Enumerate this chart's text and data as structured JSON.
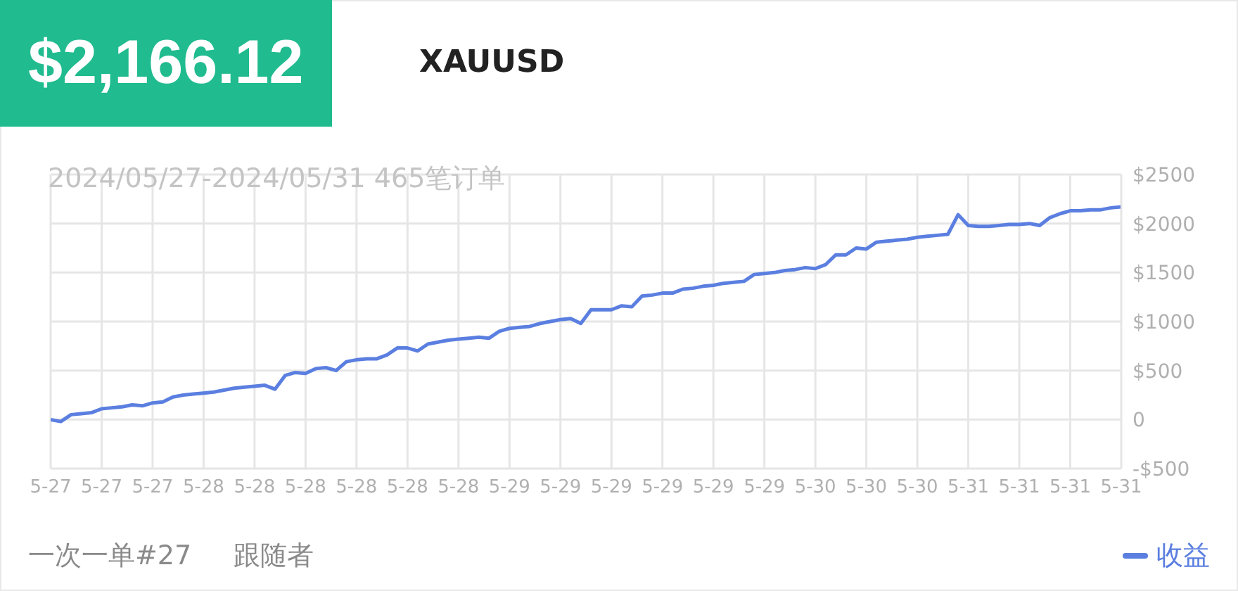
{
  "chart_data": {
    "type": "line",
    "title": "$2,166.12",
    "subtitle": "XAUUSD",
    "annotations": [
      "2024/05/27-2024/05/31 465笔订单",
      "一次一单#27",
      "跟随者"
    ],
    "categories": [
      "5-27",
      null,
      null,
      null,
      null,
      "5-27",
      null,
      null,
      null,
      null,
      "5-27",
      null,
      null,
      null,
      null,
      "5-28",
      null,
      null,
      null,
      null,
      "5-28",
      null,
      null,
      null,
      null,
      "5-28",
      null,
      null,
      null,
      null,
      "5-28",
      null,
      null,
      null,
      null,
      "5-28",
      null,
      null,
      null,
      null,
      "5-28",
      null,
      null,
      null,
      null,
      "5-29",
      null,
      null,
      null,
      null,
      "5-29",
      null,
      null,
      null,
      null,
      "5-29",
      null,
      null,
      null,
      null,
      "5-29",
      null,
      null,
      null,
      null,
      "5-29",
      null,
      null,
      null,
      null,
      "5-29",
      null,
      null,
      null,
      null,
      "5-30",
      null,
      null,
      null,
      null,
      "5-30",
      null,
      null,
      null,
      null,
      "5-30",
      null,
      null,
      null,
      null,
      "5-31",
      null,
      null,
      null,
      null,
      "5-31",
      null,
      null,
      null,
      null,
      "5-31",
      null,
      null,
      null,
      null,
      "5-31"
    ],
    "series": [
      {
        "name": "收益",
        "color": "#5b7fe0",
        "values": [
          0,
          -20,
          50,
          60,
          70,
          110,
          120,
          130,
          150,
          140,
          170,
          180,
          230,
          250,
          260,
          270,
          280,
          300,
          320,
          330,
          340,
          350,
          310,
          450,
          480,
          470,
          520,
          530,
          500,
          590,
          610,
          620,
          620,
          660,
          730,
          730,
          700,
          770,
          790,
          810,
          820,
          830,
          840,
          830,
          900,
          930,
          940,
          950,
          980,
          1000,
          1020,
          1030,
          980,
          1120,
          1120,
          1120,
          1160,
          1150,
          1260,
          1270,
          1290,
          1290,
          1330,
          1340,
          1360,
          1370,
          1390,
          1400,
          1410,
          1480,
          1490,
          1500,
          1520,
          1530,
          1550,
          1540,
          1580,
          1680,
          1680,
          1750,
          1740,
          1810,
          1820,
          1830,
          1840,
          1860,
          1870,
          1880,
          1890,
          2090,
          1980,
          1970,
          1970,
          1980,
          1990,
          1990,
          2000,
          1980,
          2060,
          2100,
          2130,
          2130,
          2140,
          2140,
          2160,
          2170
        ]
      }
    ],
    "ylim": [
      -500,
      2500
    ],
    "yticks": [
      {
        "value": -500,
        "label": "-$500"
      },
      0,
      {
        "value": 500,
        "label": "$500"
      },
      {
        "value": 1000,
        "label": "$1000"
      },
      {
        "value": 1500,
        "label": "$1500"
      },
      {
        "value": 2000,
        "label": "$2000"
      },
      {
        "value": 2500,
        "label": "$2500"
      }
    ],
    "grid": true,
    "legend": "bottom right",
    "marker": "none",
    "line_style": "solid"
  }
}
